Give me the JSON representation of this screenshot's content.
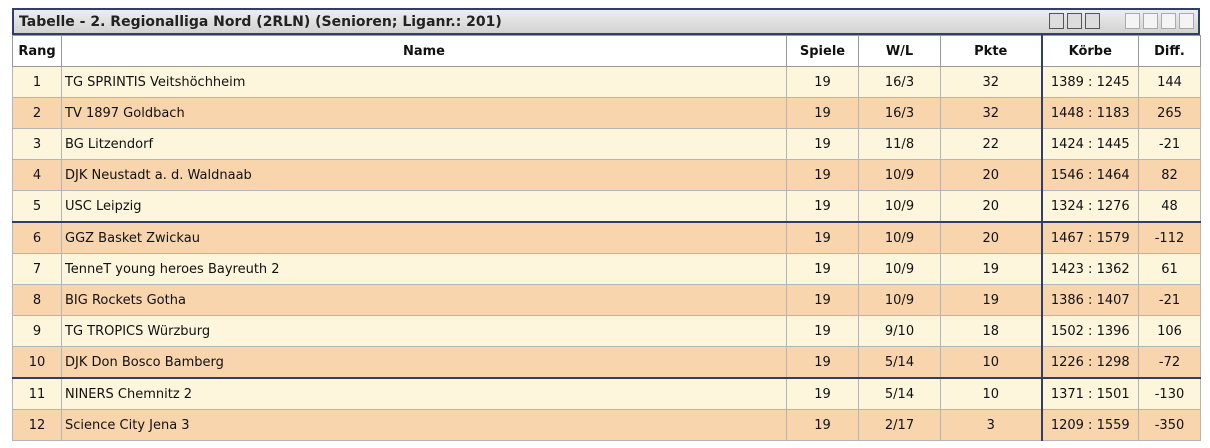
{
  "header": {
    "title": "Tabelle - 2. Regionalliga Nord (2RLN) (Senioren; Liganr.: 201)"
  },
  "table": {
    "columns": [
      "Rang",
      "Name",
      "Spiele",
      "W/L",
      "Pkte",
      "Körbe",
      "Diff."
    ],
    "rows": [
      [
        1,
        "TG SPRINTIS Veitshöchheim",
        19,
        "16/3",
        32,
        "1389 : 1245",
        144
      ],
      [
        2,
        "TV 1897 Goldbach",
        19,
        "16/3",
        32,
        "1448 : 1183",
        265
      ],
      [
        3,
        "BG Litzendorf",
        19,
        "11/8",
        22,
        "1424 : 1445",
        -21
      ],
      [
        4,
        "DJK Neustadt a. d. Waldnaab",
        19,
        "10/9",
        20,
        "1546 : 1464",
        82
      ],
      [
        5,
        "USC Leipzig",
        19,
        "10/9",
        20,
        "1324 : 1276",
        48
      ],
      [
        6,
        "GGZ Basket Zwickau",
        19,
        "10/9",
        20,
        "1467 : 1579",
        -112
      ],
      [
        7,
        "TenneT young heroes Bayreuth 2",
        19,
        "10/9",
        19,
        "1423 : 1362",
        61
      ],
      [
        8,
        "BIG Rockets Gotha",
        19,
        "10/9",
        19,
        "1386 : 1407",
        -21
      ],
      [
        9,
        "TG TROPICS Würzburg",
        19,
        "9/10",
        18,
        "1502 : 1396",
        106
      ],
      [
        10,
        "DJK Don Bosco Bamberg",
        19,
        "5/14",
        10,
        "1226 : 1298",
        -72
      ],
      [
        11,
        "NINERS Chemnitz 2",
        19,
        "5/14",
        10,
        "1371 : 1501",
        -130
      ],
      [
        12,
        "Science City Jena 3",
        19,
        "2/17",
        3,
        "1209 : 1559",
        -350
      ]
    ]
  }
}
